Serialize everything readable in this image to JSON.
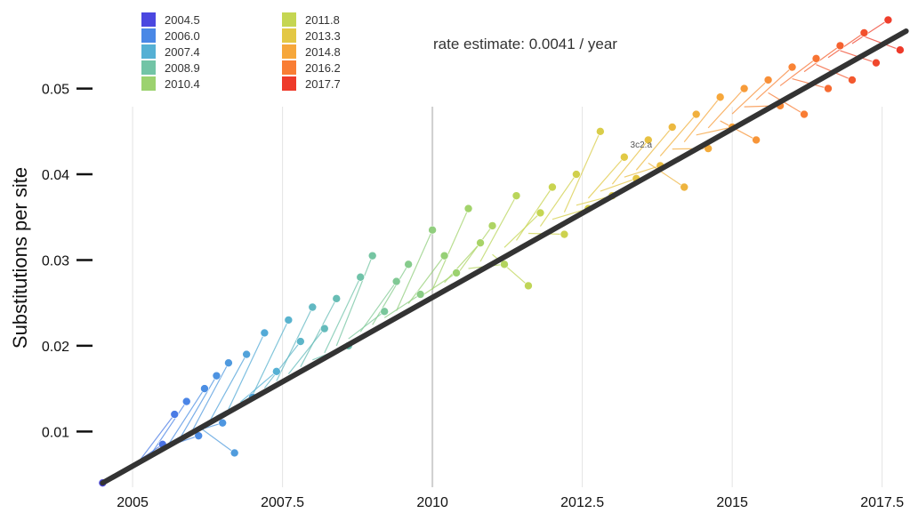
{
  "chart_data": {
    "type": "scatter",
    "title": "",
    "ylabel": "Substitutions per site",
    "xlabel": "",
    "xlim": [
      2004.45,
      2017.95
    ],
    "ylim": [
      0.0035,
      0.0595
    ],
    "x_ticks": [
      {
        "value": 2005,
        "label": "2005"
      },
      {
        "value": 2007.5,
        "label": "2007.5"
      },
      {
        "value": 2010,
        "label": "2010"
      },
      {
        "value": 2012.5,
        "label": "2012.5"
      },
      {
        "value": 2015,
        "label": "2015"
      },
      {
        "value": 2017.5,
        "label": "2017.5"
      }
    ],
    "y_ticks": [
      {
        "value": 0.01,
        "label": "0.01"
      },
      {
        "value": 0.02,
        "label": "0.02"
      },
      {
        "value": 0.03,
        "label": "0.03"
      },
      {
        "value": 0.04,
        "label": "0.04"
      },
      {
        "value": 0.05,
        "label": "0.05"
      }
    ],
    "grid": {
      "vertical": true,
      "horizontal": false
    },
    "legend": {
      "placement": "top-left",
      "entries": [
        {
          "label": "2004.5",
          "color": "#4b47e0"
        },
        {
          "label": "2006.0",
          "color": "#4a88e6"
        },
        {
          "label": "2007.4",
          "color": "#55b0d4"
        },
        {
          "label": "2008.9",
          "color": "#72c4a6"
        },
        {
          "label": "2010.4",
          "color": "#9cd26f"
        },
        {
          "label": "2011.8",
          "color": "#c5d652"
        },
        {
          "label": "2013.3",
          "color": "#e3c844"
        },
        {
          "label": "2014.8",
          "color": "#f6a73b"
        },
        {
          "label": "2016.2",
          "color": "#f97d34"
        },
        {
          "label": "2017.7",
          "color": "#ee3a2a"
        }
      ]
    },
    "regression": {
      "label": "rate estimate: 0.0041 / year",
      "rate": 0.0041,
      "start": [
        2004.5,
        0.004
      ],
      "end": [
        2017.9,
        0.0567
      ],
      "color": "#333333"
    },
    "annotations": [
      {
        "text": "3c2.a",
        "x": 2013.3,
        "y": 0.0431
      }
    ],
    "series": [
      {
        "values": [
          [
            2004.5,
            0.004
          ],
          [
            2005.5,
            0.0085
          ],
          [
            2005.7,
            0.012
          ],
          [
            2005.9,
            0.0135
          ],
          [
            2006.1,
            0.0095
          ],
          [
            2006.2,
            0.015
          ],
          [
            2006.4,
            0.0165
          ],
          [
            2006.5,
            0.011
          ],
          [
            2006.6,
            0.018
          ],
          [
            2006.7,
            0.0075
          ],
          [
            2006.9,
            0.019
          ],
          [
            2007.0,
            0.014
          ],
          [
            2007.2,
            0.0215
          ],
          [
            2007.4,
            0.017
          ],
          [
            2007.6,
            0.023
          ],
          [
            2007.8,
            0.0205
          ],
          [
            2008.0,
            0.0245
          ],
          [
            2008.2,
            0.022
          ],
          [
            2008.4,
            0.0255
          ],
          [
            2008.6,
            0.02
          ],
          [
            2008.8,
            0.028
          ],
          [
            2009.0,
            0.0305
          ],
          [
            2009.2,
            0.024
          ],
          [
            2009.4,
            0.0275
          ],
          [
            2009.6,
            0.0295
          ],
          [
            2009.8,
            0.026
          ],
          [
            2010.0,
            0.0335
          ],
          [
            2010.2,
            0.0305
          ],
          [
            2010.4,
            0.0285
          ],
          [
            2010.6,
            0.036
          ],
          [
            2010.8,
            0.032
          ],
          [
            2011.0,
            0.034
          ],
          [
            2011.2,
            0.0295
          ],
          [
            2011.4,
            0.0375
          ],
          [
            2011.6,
            0.027
          ],
          [
            2011.8,
            0.0355
          ],
          [
            2012.0,
            0.0385
          ],
          [
            2012.2,
            0.033
          ],
          [
            2012.4,
            0.04
          ],
          [
            2012.6,
            0.036
          ],
          [
            2012.8,
            0.045
          ],
          [
            2013.0,
            0.0375
          ],
          [
            2013.2,
            0.042
          ],
          [
            2013.4,
            0.0395
          ],
          [
            2013.6,
            0.044
          ],
          [
            2013.8,
            0.041
          ],
          [
            2014.0,
            0.0455
          ],
          [
            2014.2,
            0.0385
          ],
          [
            2014.4,
            0.047
          ],
          [
            2014.6,
            0.043
          ],
          [
            2014.8,
            0.049
          ],
          [
            2015.0,
            0.0455
          ],
          [
            2015.2,
            0.05
          ],
          [
            2015.4,
            0.044
          ],
          [
            2015.6,
            0.051
          ],
          [
            2015.8,
            0.048
          ],
          [
            2016.0,
            0.0525
          ],
          [
            2016.2,
            0.047
          ],
          [
            2016.4,
            0.0535
          ],
          [
            2016.6,
            0.05
          ],
          [
            2016.8,
            0.055
          ],
          [
            2017.0,
            0.051
          ],
          [
            2017.2,
            0.0565
          ],
          [
            2017.4,
            0.053
          ],
          [
            2017.6,
            0.058
          ],
          [
            2017.8,
            0.0545
          ]
        ]
      }
    ]
  }
}
